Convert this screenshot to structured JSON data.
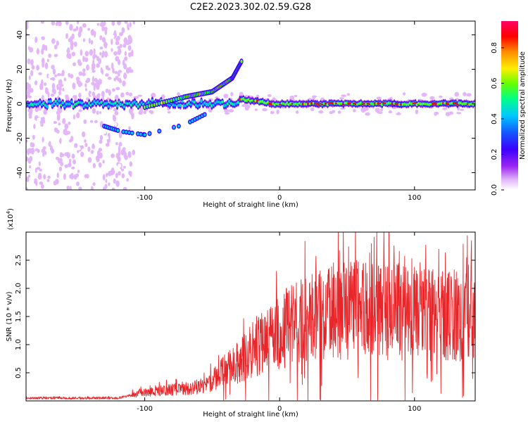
{
  "chart_data": [
    {
      "type": "heatmap",
      "title": "C2E2.2023.302.02.59.G28",
      "xlabel": "Height of straight line (km)",
      "ylabel": "Frequency (Hz)",
      "xlim": [
        -188,
        145
      ],
      "ylim": [
        -50,
        48
      ],
      "xticks": [
        -100,
        0,
        100
      ],
      "xtick_labels": [
        "-100",
        "0",
        "100"
      ],
      "yticks": [
        40,
        20,
        0,
        -20,
        -40
      ],
      "ytick_labels": [
        "40",
        "20",
        "0",
        "-20",
        "-40"
      ],
      "colorbar": {
        "label": "Normalized spectral amplitude",
        "range": [
          0,
          0.95
        ],
        "ticks": [
          0.0,
          0.2,
          0.4,
          0.6,
          0.8
        ],
        "tick_labels": [
          "0.0",
          "0.2",
          "0.4",
          "0.6",
          "0.8"
        ],
        "colors": [
          "#ffffff",
          "#e2b6f8",
          "#9b26f0",
          "#3b00ff",
          "#1458ff",
          "#00c8ff",
          "#00ff88",
          "#66ff00",
          "#ffee00",
          "#ff8800",
          "#ff0000",
          "#ff0066"
        ]
      },
      "features": [
        {
          "name": "main-band",
          "x_range": [
            -188,
            145
          ],
          "center_hz": 0
        },
        {
          "name": "upward-branch",
          "points": [
            [
              -100,
              -2
            ],
            [
              -70,
              4
            ],
            [
              -50,
              7
            ],
            [
              -35,
              15
            ],
            [
              -28,
              25
            ]
          ]
        },
        {
          "name": "lower-branch",
          "points": [
            [
              -130,
              -13
            ],
            [
              -118,
              -16
            ],
            [
              -100,
              -18
            ],
            [
              -70,
              -12
            ],
            [
              -55,
              -6
            ]
          ]
        }
      ]
    },
    {
      "type": "line",
      "xlabel": "Height of straight line (km)",
      "ylabel": "SNR (10 * v/v)",
      "y_multiplier_label": "(x10",
      "y_multiplier_exp": "4",
      "y_multiplier_close": ")",
      "xlim": [
        -188,
        145
      ],
      "ylim": [
        0,
        3.0
      ],
      "xticks": [
        -100,
        0,
        100
      ],
      "xtick_labels": [
        "-100",
        "0",
        "100"
      ],
      "yticks": [
        0.5,
        1.0,
        1.5,
        2.0,
        2.5
      ],
      "ytick_labels": [
        "0.5",
        "1.0",
        "1.5",
        "2.0",
        "2.5"
      ],
      "series": [
        {
          "name": "SNR",
          "color": "#e8262a",
          "envelope": [
            [
              -188,
              0.05
            ],
            [
              -150,
              0.05
            ],
            [
              -120,
              0.05
            ],
            [
              -100,
              0.15
            ],
            [
              -80,
              0.2
            ],
            [
              -60,
              0.25
            ],
            [
              -50,
              0.35
            ],
            [
              -40,
              0.55
            ],
            [
              -30,
              0.7
            ],
            [
              -20,
              0.9
            ],
            [
              -10,
              1.05
            ],
            [
              0,
              1.25
            ],
            [
              10,
              1.35
            ],
            [
              20,
              1.45
            ],
            [
              30,
              1.5
            ],
            [
              40,
              1.55
            ],
            [
              50,
              1.6
            ],
            [
              60,
              1.6
            ],
            [
              80,
              1.6
            ],
            [
              100,
              1.55
            ],
            [
              120,
              1.5
            ],
            [
              145,
              1.5
            ]
          ],
          "peaks": [
            [
              -37,
              0.9
            ],
            [
              -20,
              1.4
            ],
            [
              5,
              2.0
            ],
            [
              45,
              2.1
            ],
            [
              57,
              2.5
            ],
            [
              68,
              2.8
            ],
            [
              72,
              3.0
            ],
            [
              95,
              2.3
            ],
            [
              118,
              2.7
            ],
            [
              133,
              2.05
            ]
          ]
        }
      ]
    }
  ]
}
